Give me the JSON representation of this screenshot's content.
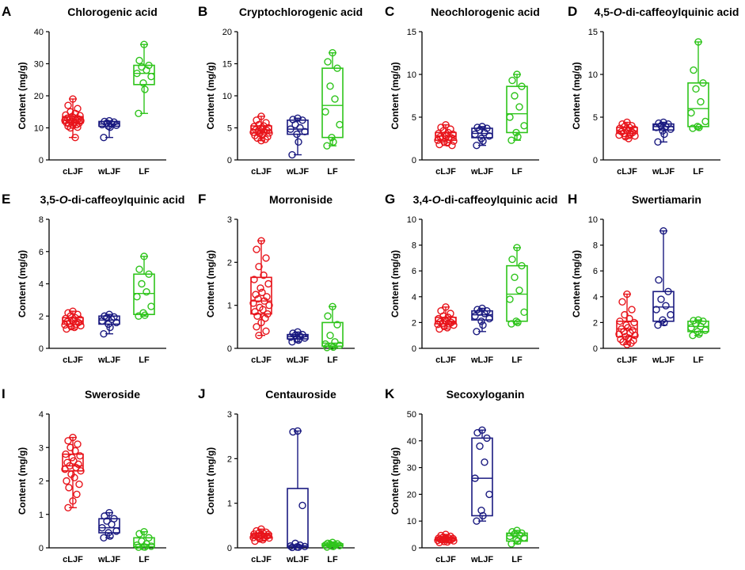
{
  "colors": {
    "cLJF": "#e8141b",
    "wLJF": "#1a1a80",
    "LF": "#2ec41b"
  },
  "chart_data": [
    {
      "letter": "A",
      "title": "Chlorogenic acid",
      "type": "box",
      "ylabel": "Content (mg/g)",
      "ylim": [
        0,
        40
      ],
      "yticks": [
        0,
        10,
        20,
        30,
        40
      ],
      "categories": [
        "cLJF",
        "wLJF",
        "LF"
      ],
      "series": [
        {
          "name": "cLJF",
          "min": 7,
          "q1": 11.5,
          "median": 12.5,
          "q3": 13.5,
          "max": 19,
          "points": [
            19,
            17,
            16,
            15,
            14.5,
            14,
            13.8,
            13.5,
            13.2,
            13,
            12.8,
            12.6,
            12.5,
            12.3,
            12.2,
            12,
            11.8,
            11.6,
            11.5,
            11.3,
            11,
            10.8,
            10.5,
            10.2,
            10,
            7
          ]
        },
        {
          "name": "wLJF",
          "min": 7,
          "q1": 10.5,
          "median": 11.2,
          "q3": 12,
          "max": 12.2,
          "points": [
            12.2,
            12,
            11.8,
            11.5,
            11.2,
            11,
            10.8,
            10.5,
            10.2,
            7
          ]
        },
        {
          "name": "LF",
          "min": 14.5,
          "q1": 23.5,
          "median": 27,
          "q3": 29.5,
          "max": 36,
          "points": [
            36,
            31,
            29.5,
            29,
            28,
            27,
            26,
            24,
            22,
            14.5
          ]
        }
      ]
    },
    {
      "letter": "B",
      "title": "Cryptochlorogenic acid",
      "type": "box",
      "ylabel": "Content (mg/g)",
      "ylim": [
        0,
        20
      ],
      "yticks": [
        0,
        5,
        10,
        15,
        20
      ],
      "categories": [
        "cLJF",
        "wLJF",
        "LF"
      ],
      "series": [
        {
          "name": "cLJF",
          "min": 3,
          "q1": 4.2,
          "median": 4.7,
          "q3": 5.3,
          "max": 6.8,
          "points": [
            6.8,
            6.2,
            5.8,
            5.5,
            5.3,
            5.2,
            5,
            4.9,
            4.8,
            4.7,
            4.6,
            4.5,
            4.4,
            4.3,
            4.2,
            4.1,
            4,
            3.8,
            3.6,
            3.4,
            3.2,
            3
          ]
        },
        {
          "name": "wLJF",
          "min": 0.8,
          "q1": 4,
          "median": 4.8,
          "q3": 6.2,
          "max": 6.5,
          "points": [
            6.5,
            6.3,
            6.2,
            5.5,
            5,
            4.8,
            4.4,
            4,
            2.8,
            0.8
          ]
        },
        {
          "name": "LF",
          "min": 2.2,
          "q1": 3.5,
          "median": 8.5,
          "q3": 14.3,
          "max": 16.7,
          "points": [
            16.7,
            15.3,
            14.3,
            11.5,
            9.5,
            7.5,
            5.5,
            3.5,
            2.8,
            2.2
          ]
        }
      ]
    },
    {
      "letter": "C",
      "title": "Neochlorogenic acid",
      "type": "box",
      "ylabel": "Content (mg/g)",
      "ylim": [
        0,
        15
      ],
      "yticks": [
        0,
        5,
        10,
        15
      ],
      "categories": [
        "cLJF",
        "wLJF",
        "LF"
      ],
      "series": [
        {
          "name": "cLJF",
          "min": 1.7,
          "q1": 2.3,
          "median": 2.8,
          "q3": 3.2,
          "max": 4.1,
          "points": [
            4.1,
            3.8,
            3.6,
            3.4,
            3.2,
            3.1,
            3,
            2.9,
            2.8,
            2.7,
            2.6,
            2.5,
            2.4,
            2.3,
            2.2,
            2.1,
            2,
            1.8,
            1.7
          ]
        },
        {
          "name": "wLJF",
          "min": 1.7,
          "q1": 2.6,
          "median": 3.1,
          "q3": 3.7,
          "max": 3.9,
          "points": [
            3.9,
            3.8,
            3.7,
            3.5,
            3.2,
            3,
            2.8,
            2.5,
            2.2,
            1.7
          ]
        },
        {
          "name": "LF",
          "min": 2.3,
          "q1": 3.2,
          "median": 5.4,
          "q3": 8.6,
          "max": 10,
          "points": [
            10,
            9.3,
            8.6,
            7.5,
            6.2,
            5,
            4,
            3.2,
            2.7,
            2.3
          ]
        }
      ]
    },
    {
      "letter": "D",
      "title": "4,5-O-di-caffeoylquinic acid",
      "type": "box",
      "ylabel": "Content (mg/g)",
      "ylim": [
        0,
        15
      ],
      "yticks": [
        0,
        5,
        10,
        15
      ],
      "categories": [
        "cLJF",
        "wLJF",
        "LF"
      ],
      "series": [
        {
          "name": "cLJF",
          "min": 2.5,
          "q1": 3.1,
          "median": 3.4,
          "q3": 3.8,
          "max": 4.4,
          "points": [
            4.4,
            4.2,
            4,
            3.9,
            3.8,
            3.7,
            3.6,
            3.5,
            3.4,
            3.3,
            3.2,
            3.1,
            3,
            2.9,
            2.8,
            2.7,
            2.5
          ]
        },
        {
          "name": "wLJF",
          "min": 2.1,
          "q1": 3.5,
          "median": 3.9,
          "q3": 4.2,
          "max": 4.4,
          "points": [
            4.4,
            4.3,
            4.2,
            4,
            3.9,
            3.8,
            3.6,
            3.4,
            3,
            2.1
          ]
        },
        {
          "name": "LF",
          "min": 3.7,
          "q1": 3.9,
          "median": 6,
          "q3": 9,
          "max": 13.8,
          "points": [
            13.8,
            10.5,
            9,
            8.3,
            6.8,
            5.5,
            4.5,
            3.9,
            3.8,
            3.7
          ]
        }
      ]
    },
    {
      "letter": "E",
      "title": "3,5-O-di-caffeoylquinic acid",
      "type": "box",
      "ylabel": "Content (mg/g)",
      "ylim": [
        0,
        8
      ],
      "yticks": [
        0,
        2,
        4,
        6,
        8
      ],
      "categories": [
        "cLJF",
        "wLJF",
        "LF"
      ],
      "series": [
        {
          "name": "cLJF",
          "min": 1.2,
          "q1": 1.5,
          "median": 1.7,
          "q3": 1.9,
          "max": 2.3,
          "points": [
            2.3,
            2.2,
            2.1,
            2,
            1.9,
            1.85,
            1.8,
            1.75,
            1.7,
            1.65,
            1.6,
            1.55,
            1.5,
            1.45,
            1.4,
            1.35,
            1.3,
            1.2
          ]
        },
        {
          "name": "wLJF",
          "min": 0.9,
          "q1": 1.5,
          "median": 1.75,
          "q3": 2,
          "max": 2.1,
          "points": [
            2.1,
            2,
            1.95,
            1.9,
            1.8,
            1.7,
            1.6,
            1.5,
            1.3,
            0.9
          ]
        },
        {
          "name": "LF",
          "min": 2,
          "q1": 2.1,
          "median": 3.4,
          "q3": 4.6,
          "max": 5.7,
          "points": [
            5.7,
            4.9,
            4.6,
            4,
            3.5,
            3.2,
            2.6,
            2.2,
            2.05,
            2
          ]
        }
      ]
    },
    {
      "letter": "F",
      "title": "Morroniside",
      "type": "box",
      "ylabel": "Content (mg/g)",
      "ylim": [
        0,
        3
      ],
      "yticks": [
        0,
        1,
        2,
        3
      ],
      "categories": [
        "cLJF",
        "wLJF",
        "LF"
      ],
      "series": [
        {
          "name": "cLJF",
          "min": 0.3,
          "q1": 0.8,
          "median": 1.1,
          "q3": 1.65,
          "max": 2.5,
          "points": [
            2.5,
            2.3,
            2.1,
            1.9,
            1.7,
            1.6,
            1.5,
            1.4,
            1.3,
            1.25,
            1.2,
            1.15,
            1.1,
            1.05,
            1,
            0.95,
            0.9,
            0.85,
            0.8,
            0.75,
            0.7,
            0.6,
            0.5,
            0.4,
            0.3
          ]
        },
        {
          "name": "wLJF",
          "min": 0.15,
          "q1": 0.22,
          "median": 0.27,
          "q3": 0.32,
          "max": 0.38,
          "points": [
            0.38,
            0.35,
            0.32,
            0.3,
            0.28,
            0.26,
            0.24,
            0.22,
            0.19,
            0.15
          ]
        },
        {
          "name": "LF",
          "min": 0.02,
          "q1": 0.05,
          "median": 0.12,
          "q3": 0.6,
          "max": 0.97,
          "points": [
            0.97,
            0.75,
            0.55,
            0.3,
            0.15,
            0.1,
            0.07,
            0.05,
            0.03,
            0.02
          ]
        }
      ]
    },
    {
      "letter": "G",
      "title": "3,4-O-di-caffeoylquinic acid",
      "type": "box",
      "ylabel": "Content (mg/g)",
      "ylim": [
        0,
        10
      ],
      "yticks": [
        0,
        2,
        4,
        6,
        8,
        10
      ],
      "categories": [
        "cLJF",
        "wLJF",
        "LF"
      ],
      "series": [
        {
          "name": "cLJF",
          "min": 1.5,
          "q1": 1.9,
          "median": 2.1,
          "q3": 2.4,
          "max": 3.2,
          "points": [
            3.2,
            2.9,
            2.7,
            2.5,
            2.4,
            2.3,
            2.2,
            2.15,
            2.1,
            2.05,
            2,
            1.95,
            1.9,
            1.85,
            1.8,
            1.7,
            1.6,
            1.5
          ]
        },
        {
          "name": "wLJF",
          "min": 1.3,
          "q1": 2.2,
          "median": 2.6,
          "q3": 2.9,
          "max": 3.1,
          "points": [
            3.1,
            3,
            2.9,
            2.8,
            2.7,
            2.5,
            2.3,
            2.1,
            1.8,
            1.3
          ]
        },
        {
          "name": "LF",
          "min": 1.9,
          "q1": 2.1,
          "median": 4.2,
          "q3": 6.4,
          "max": 7.8,
          "points": [
            7.8,
            6.9,
            6.4,
            5.5,
            4.5,
            3.8,
            2.8,
            2.1,
            2,
            1.9
          ]
        }
      ]
    },
    {
      "letter": "H",
      "title": "Swertiamarin",
      "type": "box",
      "ylabel": "Content (mg/g)",
      "ylim": [
        0,
        10
      ],
      "yticks": [
        0,
        2,
        4,
        6,
        8,
        10
      ],
      "categories": [
        "cLJF",
        "wLJF",
        "LF"
      ],
      "series": [
        {
          "name": "cLJF",
          "min": 0.3,
          "q1": 0.9,
          "median": 1.5,
          "q3": 2.1,
          "max": 4.2,
          "points": [
            4.2,
            3.6,
            3,
            2.6,
            2.3,
            2.1,
            2,
            1.8,
            1.6,
            1.5,
            1.4,
            1.3,
            1.2,
            1.1,
            1,
            0.9,
            0.8,
            0.7,
            0.6,
            0.5,
            0.4,
            0.3
          ]
        },
        {
          "name": "wLJF",
          "min": 1.8,
          "q1": 2.1,
          "median": 3.2,
          "q3": 4.4,
          "max": 9.1,
          "points": [
            9.1,
            5.3,
            4.4,
            3.8,
            3.3,
            3,
            2.6,
            2.2,
            2,
            1.8
          ]
        },
        {
          "name": "LF",
          "min": 1,
          "q1": 1.3,
          "median": 1.7,
          "q3": 2.1,
          "max": 2.2,
          "points": [
            2.2,
            2.15,
            2.1,
            1.9,
            1.7,
            1.6,
            1.4,
            1.3,
            1.1,
            1
          ]
        }
      ]
    },
    {
      "letter": "I",
      "title": "Sweroside",
      "type": "box",
      "ylabel": "Content (mg/g)",
      "ylim": [
        0,
        4
      ],
      "yticks": [
        0,
        1,
        2,
        3,
        4
      ],
      "categories": [
        "cLJF",
        "wLJF",
        "LF"
      ],
      "series": [
        {
          "name": "cLJF",
          "min": 1.2,
          "q1": 2.3,
          "median": 2.45,
          "q3": 2.8,
          "max": 3.3,
          "points": [
            3.3,
            3.2,
            3.1,
            3,
            2.9,
            2.8,
            2.75,
            2.7,
            2.6,
            2.55,
            2.5,
            2.45,
            2.4,
            2.35,
            2.3,
            2.2,
            2.1,
            2,
            1.9,
            1.8,
            1.6,
            1.4,
            1.2
          ]
        },
        {
          "name": "wLJF",
          "min": 0.3,
          "q1": 0.45,
          "median": 0.6,
          "q3": 0.87,
          "max": 1.05,
          "points": [
            1.05,
            0.95,
            0.87,
            0.8,
            0.7,
            0.6,
            0.5,
            0.45,
            0.35,
            0.3
          ]
        },
        {
          "name": "LF",
          "min": 0.02,
          "q1": 0.03,
          "median": 0.1,
          "q3": 0.3,
          "max": 0.48,
          "points": [
            0.48,
            0.42,
            0.3,
            0.2,
            0.12,
            0.08,
            0.05,
            0.03,
            0.025,
            0.02
          ]
        }
      ]
    },
    {
      "letter": "J",
      "title": "Centauroside",
      "type": "box",
      "ylabel": "Content (mg/g)",
      "ylim": [
        0,
        3
      ],
      "yticks": [
        0,
        1,
        2,
        3
      ],
      "categories": [
        "cLJF",
        "wLJF",
        "LF"
      ],
      "series": [
        {
          "name": "cLJF",
          "min": 0.15,
          "q1": 0.22,
          "median": 0.27,
          "q3": 0.32,
          "max": 0.42,
          "points": [
            0.42,
            0.38,
            0.35,
            0.33,
            0.32,
            0.31,
            0.3,
            0.29,
            0.28,
            0.27,
            0.26,
            0.25,
            0.24,
            0.23,
            0.22,
            0.2,
            0.18,
            0.15
          ]
        },
        {
          "name": "wLJF",
          "min": 0.01,
          "q1": 0.02,
          "median": 0.05,
          "q3": 1.33,
          "max": 2.62,
          "points": [
            2.62,
            2.6,
            0.95,
            0.1,
            0.06,
            0.04,
            0.03,
            0.02,
            0.015,
            0.01
          ]
        },
        {
          "name": "LF",
          "min": 0.02,
          "q1": 0.04,
          "median": 0.06,
          "q3": 0.09,
          "max": 0.12,
          "points": [
            0.12,
            0.1,
            0.09,
            0.08,
            0.07,
            0.06,
            0.05,
            0.04,
            0.03,
            0.02
          ]
        }
      ]
    },
    {
      "letter": "K",
      "title": "Secoxyloganin",
      "type": "box",
      "ylabel": "Content (mg/g)",
      "ylim": [
        0,
        50
      ],
      "yticks": [
        0,
        10,
        20,
        30,
        40,
        50
      ],
      "categories": [
        "cLJF",
        "wLJF",
        "LF"
      ],
      "series": [
        {
          "name": "cLJF",
          "min": 2,
          "q1": 2.8,
          "median": 3.3,
          "q3": 3.8,
          "max": 5,
          "points": [
            5,
            4.6,
            4.3,
            4,
            3.8,
            3.6,
            3.5,
            3.4,
            3.3,
            3.2,
            3.1,
            3,
            2.9,
            2.8,
            2.6,
            2.4,
            2.2,
            2
          ]
        },
        {
          "name": "wLJF",
          "min": 10,
          "q1": 12,
          "median": 26,
          "q3": 41,
          "max": 44,
          "points": [
            44,
            43,
            41,
            38,
            32,
            26,
            20,
            14,
            12,
            10
          ]
        },
        {
          "name": "LF",
          "min": 1.5,
          "q1": 2.5,
          "median": 4.5,
          "q3": 5.5,
          "max": 6.5,
          "points": [
            6.5,
            6,
            5.5,
            5.2,
            4.8,
            4.3,
            3.8,
            3,
            2.5,
            1.5
          ]
        }
      ]
    }
  ]
}
